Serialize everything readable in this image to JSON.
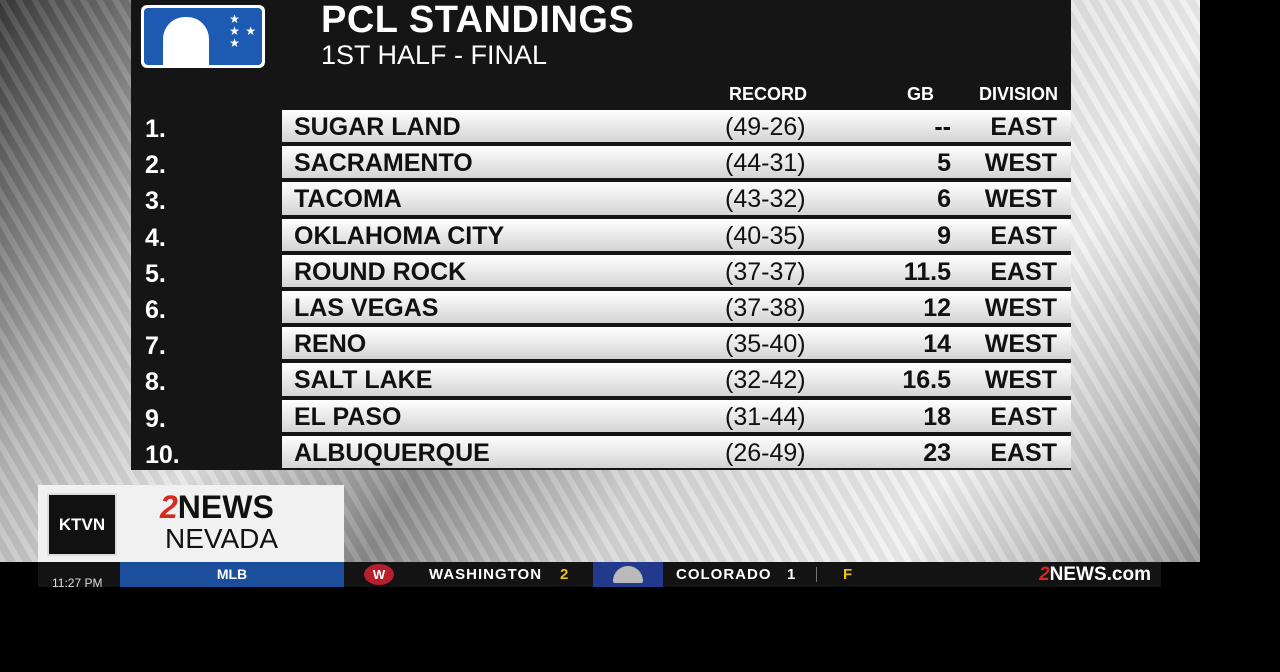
{
  "header": {
    "title": "PCL STANDINGS",
    "subtitle": "1ST HALF - FINAL"
  },
  "columns": {
    "record": "RECORD",
    "gb": "GB",
    "division": "DIVISION"
  },
  "standings": [
    {
      "rank": "1.",
      "team": "SUGAR LAND",
      "record": "(49-26)",
      "gb": "--",
      "division": "EAST"
    },
    {
      "rank": "2.",
      "team": "SACRAMENTO",
      "record": "(44-31)",
      "gb": "5",
      "division": "WEST"
    },
    {
      "rank": "3.",
      "team": "TACOMA",
      "record": "(43-32)",
      "gb": "6",
      "division": "WEST"
    },
    {
      "rank": "4.",
      "team": "OKLAHOMA CITY",
      "record": "(40-35)",
      "gb": "9",
      "division": "EAST"
    },
    {
      "rank": "5.",
      "team": "ROUND ROCK",
      "record": "(37-37)",
      "gb": "11.5",
      "division": "EAST"
    },
    {
      "rank": "6.",
      "team": "LAS VEGAS",
      "record": "(37-38)",
      "gb": "12",
      "division": "WEST"
    },
    {
      "rank": "7.",
      "team": "RENO",
      "record": "(35-40)",
      "gb": "14",
      "division": "WEST"
    },
    {
      "rank": "8.",
      "team": "SALT LAKE",
      "record": "(32-42)",
      "gb": "16.5",
      "division": "WEST"
    },
    {
      "rank": "9.",
      "team": "EL PASO",
      "record": "(31-44)",
      "gb": "18",
      "division": "EAST"
    },
    {
      "rank": "10.",
      "team": "ALBUQUERQUE",
      "record": "(26-49)",
      "gb": "23",
      "division": "EAST"
    }
  ],
  "branding": {
    "station": "KTVN",
    "news_num": "2",
    "news_word": "NEWS",
    "region": "NEVADA"
  },
  "ticker": {
    "time": "11:27 PM",
    "league": "MLB",
    "team1": "WASHINGTON",
    "score1": "2",
    "team2": "COLORADO",
    "score2": "1",
    "status": "F",
    "site_num": "2",
    "site_rest": "NEWS.com"
  },
  "colors": {
    "accent_red": "#d42a20",
    "mlb_blue": "#1b4e9b",
    "ticker_yellow": "#f5c200"
  },
  "icons": {
    "logo": "mlb-logo-icon",
    "team1": "nationals-logo-icon",
    "team2": "rockies-logo-icon"
  }
}
